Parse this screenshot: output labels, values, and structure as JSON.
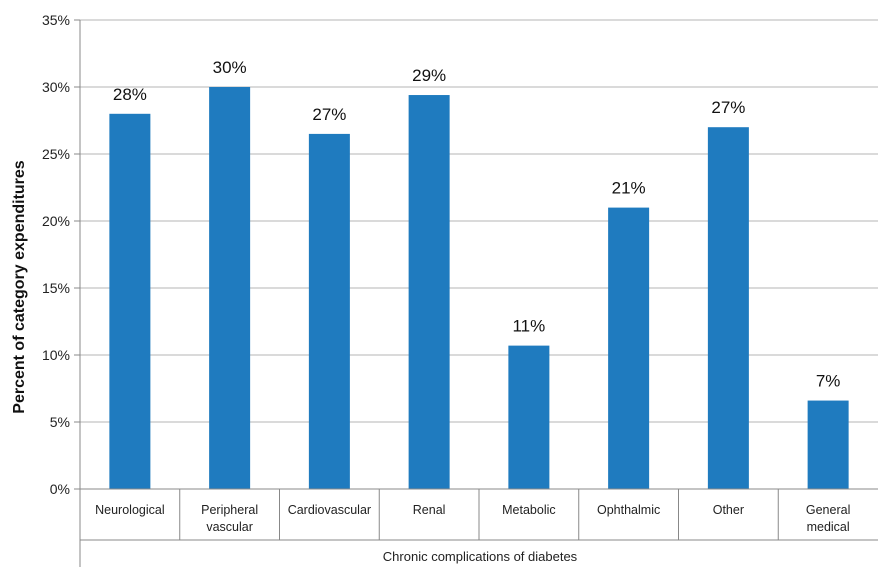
{
  "chart_data": {
    "type": "bar",
    "categories": [
      [
        "Neurological"
      ],
      [
        "Peripheral",
        "vascular"
      ],
      [
        "Cardiovascular"
      ],
      [
        "Renal"
      ],
      [
        "Metabolic"
      ],
      [
        "Ophthalmic"
      ],
      [
        "Other"
      ],
      [
        "General",
        "medical"
      ]
    ],
    "values": [
      28.0,
      30.0,
      26.5,
      29.4,
      10.7,
      21.0,
      27.0,
      6.6
    ],
    "data_labels": [
      "28%",
      "30%",
      "27%",
      "29%",
      "11%",
      "21%",
      "27%",
      "7%"
    ],
    "ylim": [
      0,
      35
    ],
    "yticks": [
      {
        "value": 0,
        "label": "0%"
      },
      {
        "value": 5,
        "label": "5%"
      },
      {
        "value": 10,
        "label": "10%"
      },
      {
        "value": 15,
        "label": "15%"
      },
      {
        "value": 20,
        "label": "20%"
      },
      {
        "value": 25,
        "label": "25%"
      },
      {
        "value": 30,
        "label": "30%"
      },
      {
        "value": 35,
        "label": "35%"
      }
    ],
    "xlabel": "Chronic complications of diabetes",
    "ylabel": "Percent of category expenditures",
    "grid": true,
    "bar_color": "#1f7bbf"
  }
}
